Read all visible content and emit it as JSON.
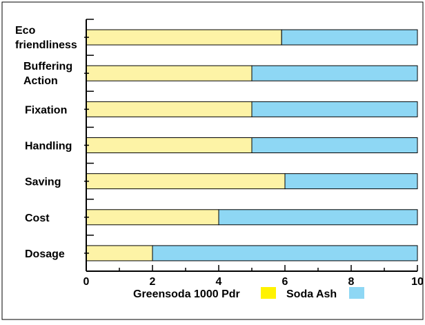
{
  "chart_data": {
    "type": "bar",
    "orientation": "horizontal",
    "stacked": true,
    "categories": [
      "Eco friendliness",
      "Buffering Action",
      "Fixation",
      "Handling",
      "Saving",
      "Cost",
      "Dosage"
    ],
    "category_lines": [
      [
        "Eco",
        "friendliness"
      ],
      [
        "Buffering",
        "Action"
      ],
      [
        "Fixation"
      ],
      [
        "Handling"
      ],
      [
        "Saving"
      ],
      [
        "Cost"
      ],
      [
        "Dosage"
      ]
    ],
    "series": [
      {
        "name": "Greensoda 1000 Pdr",
        "values": [
          5.9,
          5.0,
          5.0,
          5.0,
          6.0,
          4.0,
          2.0
        ],
        "color": "#fdf3a6"
      },
      {
        "name": "Soda Ash",
        "values": [
          4.1,
          5.0,
          5.0,
          5.0,
          4.0,
          6.0,
          8.0
        ],
        "color": "#8ed7f4"
      }
    ],
    "legend_swatch_colors": [
      "#fff200",
      "#8ed7f4"
    ],
    "xlim": [
      0,
      10
    ],
    "x_ticks": [
      "0",
      "2",
      "4",
      "6",
      "8",
      "10"
    ],
    "legend_position": "bottom",
    "grid": false
  }
}
